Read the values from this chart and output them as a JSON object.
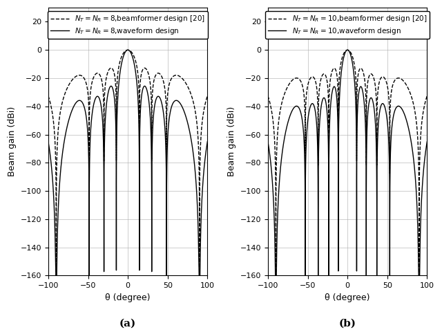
{
  "subplot_a": {
    "N": 8,
    "label_solid": "$N_T=N_R=8$,waveform design",
    "label_dashed": "$N_T=N_R=8$,beamformer design [20]"
  },
  "subplot_b": {
    "N": 10,
    "label_solid": "$N_T=N_R=10$,waveform design",
    "label_dashed": "$N_T=N_R=10$,beamformer design [20]"
  },
  "theta_min": -100,
  "theta_max": 100,
  "ylim": [
    -160,
    30
  ],
  "yticks": [
    20,
    0,
    -20,
    -40,
    -60,
    -80,
    -100,
    -120,
    -140,
    -160
  ],
  "xticks": [
    -100,
    -50,
    0,
    50,
    100
  ],
  "ylabel": "Beam gain (dBi)",
  "xlabel": "θ (degree)",
  "caption_a": "(a)",
  "caption_b": "(b)",
  "figsize": [
    6.4,
    4.8
  ],
  "dpi": 100
}
